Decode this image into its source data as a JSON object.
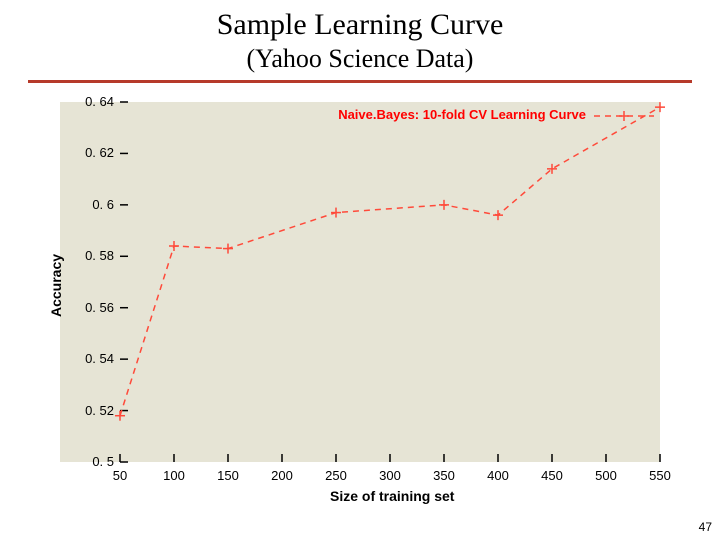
{
  "slide": {
    "title": "Sample Learning Curve",
    "subtitle": "(Yahoo Science Data)",
    "page_number": "47",
    "title_fontsize": 30,
    "subtitle_fontsize": 26,
    "rule_color": "#b63a2a"
  },
  "chart": {
    "type": "line",
    "plot_background": "#e6e4d5",
    "series_color": "#ff4a3a",
    "axis_color": "#000000",
    "tick_font_size": 13,
    "axis_label_font_size": 14,
    "legend": {
      "text": "Naive.Bayes: 10-fold CV Learning Curve",
      "color": "#ff0000",
      "font_size": 13,
      "marker": "cross",
      "line_width": 1.5
    },
    "xlabel": "Size of training set",
    "ylabel": "Accuracy",
    "xlim": [
      50,
      550
    ],
    "ylim": [
      0.5,
      0.64
    ],
    "xticks": [
      50,
      100,
      150,
      200,
      250,
      300,
      350,
      400,
      450,
      500,
      550
    ],
    "yticks": [
      0.5,
      0.52,
      0.54,
      0.56,
      0.58,
      0.6,
      0.62,
      0.64
    ],
    "ytick_labels": [
      "0. 5",
      "0. 52",
      "0. 54",
      "0. 56",
      "0. 58",
      "0. 6",
      "0. 62",
      "0. 64"
    ],
    "line_dash": "6,5",
    "line_width": 1.5,
    "marker_style": "cross",
    "marker_size": 5,
    "data": {
      "x": [
        50,
        100,
        150,
        250,
        350,
        400,
        450,
        550
      ],
      "y": [
        0.518,
        0.584,
        0.583,
        0.597,
        0.6,
        0.596,
        0.614,
        0.638
      ]
    }
  }
}
